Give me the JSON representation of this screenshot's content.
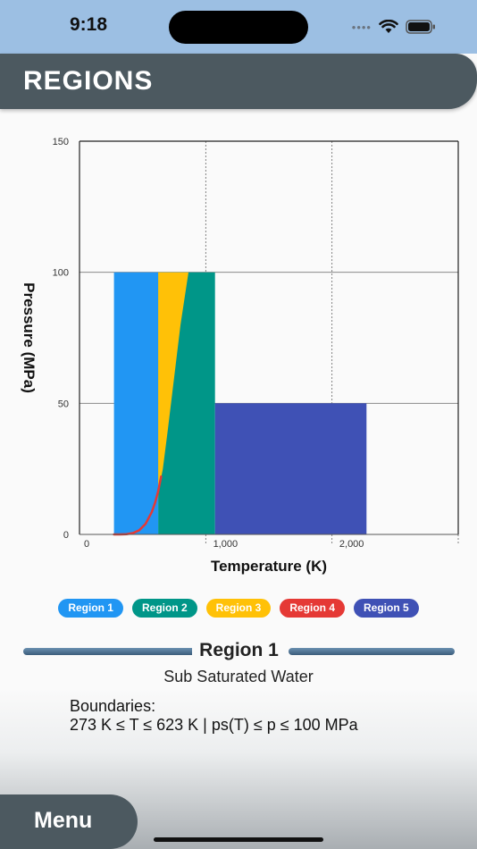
{
  "status_bar": {
    "time": "9:18",
    "signal_dots": "••••"
  },
  "header": {
    "title": "REGIONS"
  },
  "chart_data": {
    "type": "area",
    "xlabel": "Temperature (K)",
    "ylabel": "Pressure (MPa)",
    "xlim": [
      0,
      3000
    ],
    "ylim": [
      0,
      150
    ],
    "x_ticks": [
      0,
      1000,
      2000
    ],
    "x_tick_labels": [
      "0",
      "1,000",
      "2,000"
    ],
    "y_ticks": [
      0,
      50,
      100,
      150
    ],
    "y_tick_labels": [
      "0",
      "50",
      "100",
      "150"
    ],
    "grid": true,
    "regions": [
      {
        "name": "Region 1",
        "color": "#2196f3",
        "polygon": [
          [
            273,
            0
          ],
          [
            273,
            100
          ],
          [
            623,
            100
          ],
          [
            623,
            0
          ]
        ]
      },
      {
        "name": "Region 2",
        "color": "#009688",
        "polygon": [
          [
            623,
            0
          ],
          [
            623,
            100
          ],
          [
            1073,
            100
          ],
          [
            1073,
            0
          ]
        ]
      },
      {
        "name": "Region 3",
        "color": "#ffc107",
        "polygon": [
          [
            623,
            16.5
          ],
          [
            623,
            100
          ],
          [
            863,
            100
          ],
          [
            800,
            80
          ],
          [
            750,
            60
          ],
          [
            700,
            40
          ],
          [
            660,
            25
          ],
          [
            640,
            20
          ]
        ]
      },
      {
        "name": "Region 5",
        "color": "#3f51b5",
        "polygon": [
          [
            1073,
            0
          ],
          [
            1073,
            50
          ],
          [
            2273,
            50
          ],
          [
            2273,
            0
          ]
        ]
      }
    ],
    "saturation_curve": {
      "name": "Region 4",
      "color": "#e53935",
      "x": [
        273,
        320,
        373,
        423,
        473,
        523,
        573,
        600,
        623,
        647
      ],
      "y": [
        0,
        0.01,
        0.1,
        0.5,
        1.6,
        4.0,
        8.6,
        12.3,
        16.5,
        22.1
      ]
    }
  },
  "legend": [
    {
      "label": "Region 1",
      "color": "#2196f3"
    },
    {
      "label": "Region 2",
      "color": "#009688"
    },
    {
      "label": "Region 3",
      "color": "#ffc107"
    },
    {
      "label": "Region 4",
      "color": "#e53935"
    },
    {
      "label": "Region 5",
      "color": "#3f51b5"
    }
  ],
  "selected_region": {
    "title": "Region 1",
    "subtitle": "Sub Saturated Water",
    "boundaries_label": "Boundaries:",
    "boundaries_text": "273 K ≤ T ≤ 623 K | ps(T) ≤ p ≤ 100 MPa"
  },
  "menu": {
    "label": "Menu"
  }
}
